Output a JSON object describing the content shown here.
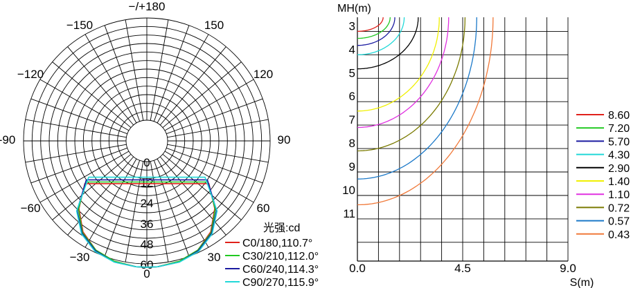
{
  "chart_data": [
    {
      "type": "polar-line",
      "title": "光强:cd",
      "angle_labels": [
        {
          "angle": 180,
          "text": "−/+180"
        },
        {
          "angle": -150,
          "text": "−150"
        },
        {
          "angle": 150,
          "text": "150"
        },
        {
          "angle": -120,
          "text": "−120"
        },
        {
          "angle": 120,
          "text": "120"
        },
        {
          "angle": -90,
          "text": "-90"
        },
        {
          "angle": 90,
          "text": "90"
        },
        {
          "angle": -60,
          "text": "−60"
        },
        {
          "angle": 60,
          "text": "60"
        },
        {
          "angle": -30,
          "text": "−30"
        },
        {
          "angle": 30,
          "text": "30"
        },
        {
          "angle": 0,
          "text": "0"
        }
      ],
      "radial_ticks": [
        "0",
        "12",
        "24",
        "36",
        "48",
        "60"
      ],
      "rmax": 60,
      "series": [
        {
          "name": "C0/180,110.7°",
          "color": "#e0201a",
          "points": [
            [
              -55.35,
              32
            ],
            [
              -45,
              44
            ],
            [
              -35,
              53
            ],
            [
              -25,
              58.5
            ],
            [
              -15,
              61
            ],
            [
              -5,
              62
            ],
            [
              0,
              62
            ],
            [
              5,
              62
            ],
            [
              15,
              61
            ],
            [
              25,
              58.5
            ],
            [
              35,
              53
            ],
            [
              45,
              44
            ],
            [
              55.35,
              32
            ]
          ]
        },
        {
          "name": "C30/210,112.0°",
          "color": "#20c820",
          "points": [
            [
              -56,
              31
            ],
            [
              -45,
              44.5
            ],
            [
              -35,
              53.5
            ],
            [
              -25,
              58.5
            ],
            [
              -15,
              61
            ],
            [
              -5,
              62
            ],
            [
              0,
              62
            ],
            [
              5,
              62
            ],
            [
              15,
              61
            ],
            [
              25,
              58.5
            ],
            [
              35,
              53.5
            ],
            [
              45,
              44.5
            ],
            [
              56,
              31
            ]
          ]
        },
        {
          "name": "C60/240,114.3°",
          "color": "#1a1aa0",
          "points": [
            [
              -57.15,
              30
            ],
            [
              -45,
              45.5
            ],
            [
              -35,
              54
            ],
            [
              -25,
              59
            ],
            [
              -15,
              61.5
            ],
            [
              -5,
              62
            ],
            [
              0,
              62
            ],
            [
              5,
              62
            ],
            [
              15,
              61.5
            ],
            [
              25,
              59
            ],
            [
              35,
              54
            ],
            [
              45,
              45.5
            ],
            [
              57.15,
              30
            ]
          ]
        },
        {
          "name": "C90/270,115.9°",
          "color": "#20d8d8",
          "points": [
            [
              -57.95,
              28
            ],
            [
              -45,
              46
            ],
            [
              -35,
              54.5
            ],
            [
              -25,
              59.5
            ],
            [
              -15,
              61.5
            ],
            [
              -5,
              62
            ],
            [
              0,
              62
            ],
            [
              5,
              62
            ],
            [
              15,
              61.5
            ],
            [
              25,
              59.5
            ],
            [
              35,
              54.5
            ],
            [
              45,
              46
            ],
            [
              57.95,
              28
            ]
          ]
        }
      ]
    },
    {
      "type": "contour",
      "xlabel": "S(m)",
      "ylabel": "MH(m)",
      "xlim": [
        0,
        9
      ],
      "ylim": [
        2.4,
        12.8
      ],
      "x_tick_labels": [
        {
          "v": 0,
          "text": "0.0"
        },
        {
          "v": 4.5,
          "text": "4.5"
        },
        {
          "v": 9,
          "text": "9.0"
        }
      ],
      "y_ticks": [
        3,
        4,
        5,
        6,
        7,
        8,
        9,
        10,
        11
      ],
      "x_grid_step": 0.9,
      "levels": [
        {
          "value": "8.60",
          "color": "#e0201a",
          "r": [
            1.1,
            0.6
          ]
        },
        {
          "value": "7.20",
          "color": "#20c820",
          "r": [
            1.4,
            0.9
          ]
        },
        {
          "value": "5.70",
          "color": "#1a1aa0",
          "r": [
            1.6,
            1.2
          ]
        },
        {
          "value": "4.30",
          "color": "#20d8d8",
          "r": [
            2.0,
            1.6
          ]
        },
        {
          "value": "2.90",
          "color": "#000000",
          "r": [
            2.6,
            2.2
          ]
        },
        {
          "value": "1.40",
          "color": "#f0f000",
          "r": [
            3.5,
            4.0
          ]
        },
        {
          "value": "1.10",
          "color": "#e030e0",
          "r": [
            3.9,
            4.7
          ]
        },
        {
          "value": "0.72",
          "color": "#7a7a00",
          "r": [
            4.6,
            5.7
          ]
        },
        {
          "value": "0.57",
          "color": "#1a78c8",
          "r": [
            5.1,
            6.9
          ]
        },
        {
          "value": "0.43",
          "color": "#f07838",
          "r": [
            5.8,
            8.0
          ]
        }
      ]
    }
  ]
}
